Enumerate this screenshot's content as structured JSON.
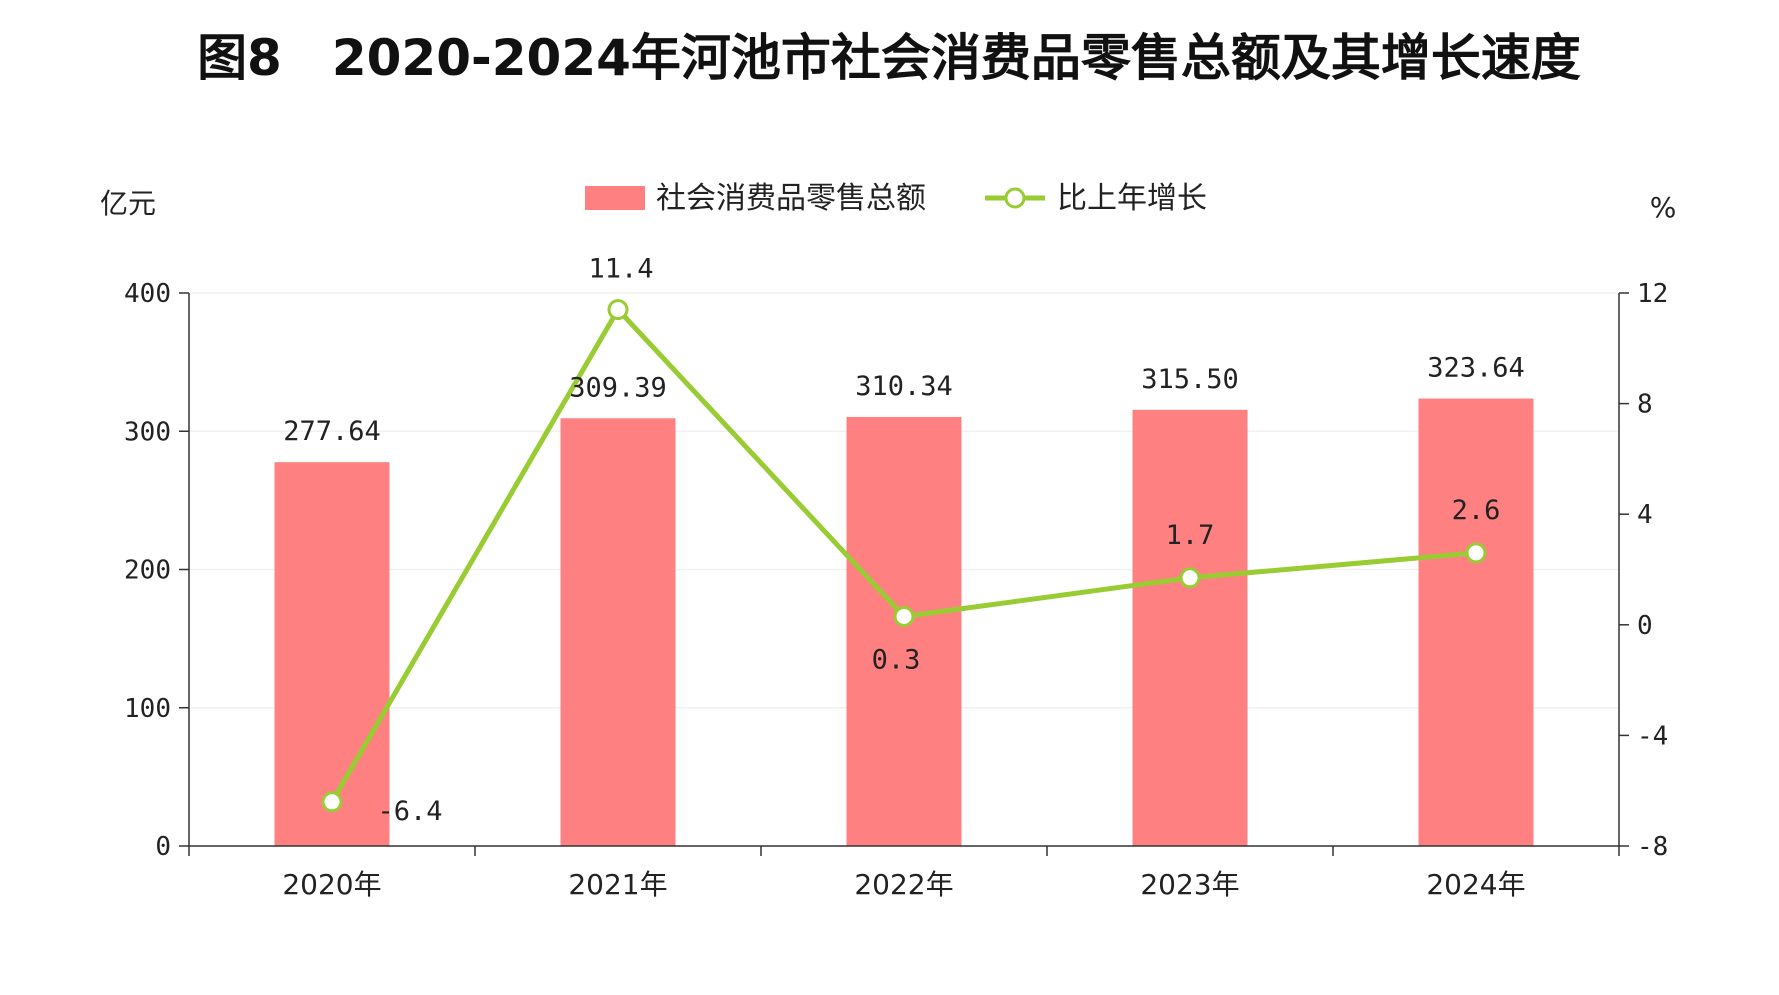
{
  "chart_data": {
    "type": "bar",
    "title": "图8　2020-2024年河池市社会消费品零售总额及其增长速度",
    "categories": [
      "2020年",
      "2021年",
      "2022年",
      "2023年",
      "2024年"
    ],
    "series": [
      {
        "name": "社会消费品零售总额",
        "type": "bar",
        "axis": "left",
        "color": "#ff8080",
        "values": [
          277.64,
          309.39,
          310.34,
          315.5,
          323.64
        ],
        "labels": [
          "277.64",
          "309.39",
          "310.34",
          "315.50",
          "323.64"
        ]
      },
      {
        "name": "比上年增长",
        "type": "line",
        "axis": "right",
        "color": "#99cc33",
        "values": [
          -6.4,
          11.4,
          0.3,
          1.7,
          2.6
        ],
        "labels": [
          "-6.4",
          "11.4",
          "0.3",
          "1.7",
          "2.6"
        ]
      }
    ],
    "left_axis": {
      "unit": "亿元",
      "ylim": [
        0,
        400
      ],
      "ticks": [
        0,
        100,
        200,
        300,
        400
      ]
    },
    "right_axis": {
      "unit": "%",
      "ylim": [
        -8,
        12
      ],
      "ticks": [
        -8,
        -4,
        0,
        4,
        8,
        12
      ]
    },
    "legend": "top-center",
    "grid": true
  }
}
